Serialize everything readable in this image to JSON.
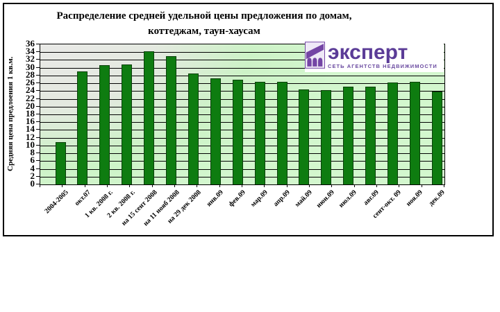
{
  "title": {
    "line1": "Распределение средней удельной цены предложения по домам,",
    "line2": "коттеджам, таун-хаусам"
  },
  "logo": {
    "name": "эксперт",
    "tagline": "СЕТЬ АГЕНТСТВ НЕДВИЖИМОСТИ",
    "brand_color": "#5b3c97",
    "icon": "building-arches-icon"
  },
  "chart_data": {
    "type": "bar",
    "title": "Распределение средней удельной цены предложения по домам, коттеджам, таун-хаусам",
    "ylabel": "Средняя цена предлоения 1 кв.м.",
    "xlabel": "",
    "ylim": [
      0,
      36
    ],
    "ytick_step": 2,
    "yticks": [
      0,
      2,
      4,
      6,
      8,
      10,
      12,
      14,
      16,
      18,
      20,
      22,
      24,
      26,
      28,
      30,
      32,
      34,
      36
    ],
    "grid": true,
    "legend": "none",
    "bar_color": "#0e7c10",
    "bar_border_color": "#0a3f0a",
    "plot_bg_colors": [
      "#e9e9e7",
      "#cdf2c7"
    ],
    "categories": [
      "2004-2005",
      "окт.07",
      "1 кв. 2008 г.",
      "2 кв. 2008 г.",
      "на 15 сент 2008",
      "на 11 нояб 2008",
      "на 29 дек 2008",
      "янв.09",
      "фев.09",
      "мар.09",
      "апр.09",
      "май.09",
      "июн.09",
      "июл.09",
      "авг.09",
      "сент-окт. 09",
      "ноя.09",
      "дек.09"
    ],
    "values": [
      10.8,
      29,
      30.6,
      30.9,
      34.2,
      32.9,
      28.6,
      27.2,
      26.9,
      26.3,
      26.4,
      24.5,
      24.3,
      25.2,
      25.1,
      26.2,
      26.4,
      23.9
    ]
  }
}
